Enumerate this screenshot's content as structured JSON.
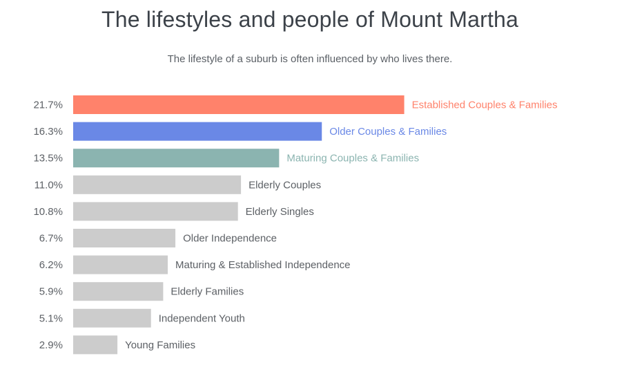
{
  "chart_data": {
    "type": "bar",
    "orientation": "horizontal",
    "title": "The lifestyles and people of Mount Martha",
    "subtitle": "The lifestyle of a suburb is often influenced by who lives there.",
    "categories": [
      "Established Couples & Families",
      "Older Couples & Families",
      "Maturing Couples & Families",
      "Elderly Couples",
      "Elderly Singles",
      "Older Independence",
      "Maturing & Established Independence",
      "Elderly Families",
      "Independent Youth",
      "Young Families"
    ],
    "values": [
      21.7,
      16.3,
      13.5,
      11.0,
      10.8,
      6.7,
      6.2,
      5.9,
      5.1,
      2.9
    ],
    "value_labels": [
      "21.7%",
      "16.3%",
      "13.5%",
      "11.0%",
      "10.8%",
      "6.7%",
      "6.2%",
      "5.9%",
      "5.1%",
      "2.9%"
    ],
    "unit": "%",
    "grid": false,
    "legend": "none",
    "colors": {
      "highlight": [
        "#ff826b",
        "#6a88e6",
        "#8bb4b0"
      ],
      "default_bar": "#cccccc",
      "default_label": "#5c6065",
      "value_label": "#5c6065"
    }
  }
}
